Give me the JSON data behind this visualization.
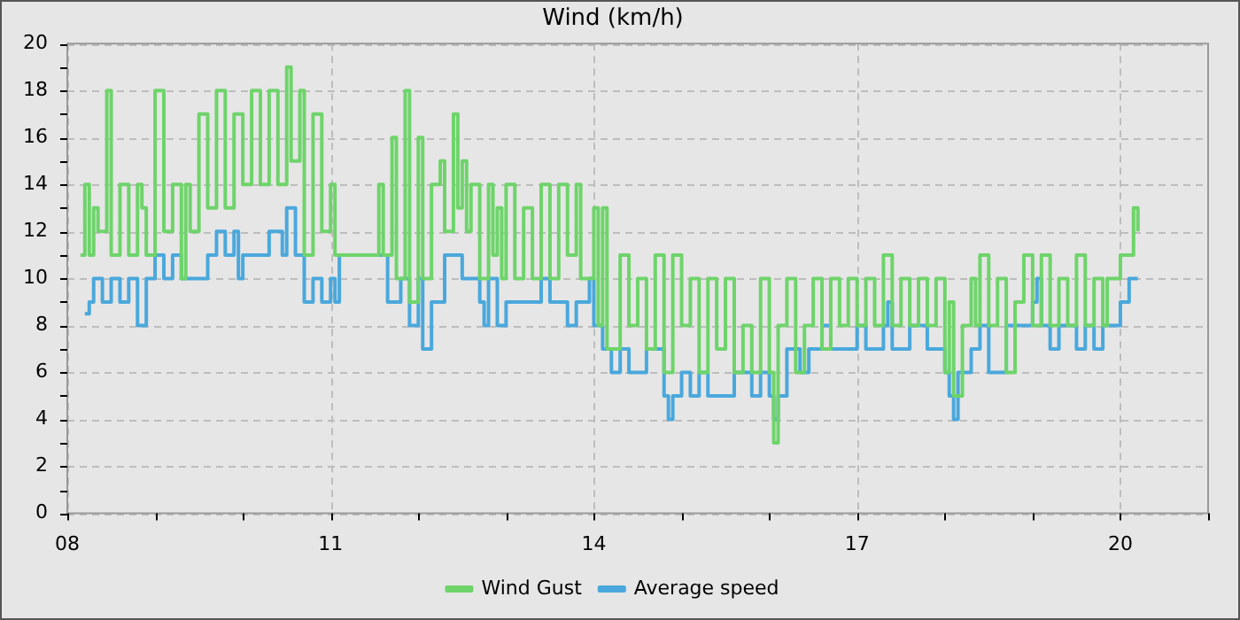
{
  "chart_data": {
    "type": "step",
    "title": "Wind (km/h)",
    "xlim": [
      8,
      21
    ],
    "ylim": [
      0,
      20
    ],
    "xticks": [
      {
        "value": 8,
        "label": "08"
      },
      {
        "value": 9,
        "label": null
      },
      {
        "value": 10,
        "label": null
      },
      {
        "value": 11,
        "label": "11"
      },
      {
        "value": 12,
        "label": null
      },
      {
        "value": 13,
        "label": null
      },
      {
        "value": 14,
        "label": "14"
      },
      {
        "value": 15,
        "label": null
      },
      {
        "value": 16,
        "label": null
      },
      {
        "value": 17,
        "label": "17"
      },
      {
        "value": 18,
        "label": null
      },
      {
        "value": 19,
        "label": null
      },
      {
        "value": 20,
        "label": "20"
      },
      {
        "value": 21,
        "label": null
      }
    ],
    "yticks": [
      0,
      {
        "value": 1,
        "label": null
      },
      2,
      {
        "value": 3,
        "label": null
      },
      4,
      {
        "value": 5,
        "label": null
      },
      6,
      {
        "value": 7,
        "label": null
      },
      8,
      {
        "value": 9,
        "label": null
      },
      10,
      {
        "value": 11,
        "label": null
      },
      12,
      {
        "value": 13,
        "label": null
      },
      14,
      {
        "value": 15,
        "label": null
      },
      16,
      {
        "value": 17,
        "label": null
      },
      18,
      {
        "value": 19,
        "label": null
      },
      20
    ],
    "grid": true,
    "legend": "bottom",
    "line_style": "solid",
    "marker": "none",
    "series": [
      {
        "name": "Wind Gust",
        "color": "#6ed46a",
        "x": [
          8.15,
          8.2,
          8.25,
          8.3,
          8.35,
          8.45,
          8.5,
          8.6,
          8.7,
          8.8,
          8.85,
          8.9,
          9.0,
          9.1,
          9.2,
          9.3,
          9.35,
          9.4,
          9.5,
          9.6,
          9.7,
          9.8,
          9.9,
          10.0,
          10.1,
          10.2,
          10.3,
          10.4,
          10.5,
          10.55,
          10.65,
          10.7,
          10.8,
          10.9,
          11.0,
          11.05,
          11.1,
          11.5,
          11.55,
          11.6,
          11.7,
          11.75,
          11.85,
          11.9,
          12.0,
          12.05,
          12.15,
          12.25,
          12.3,
          12.4,
          12.45,
          12.5,
          12.55,
          12.6,
          12.7,
          12.8,
          12.85,
          12.9,
          12.95,
          13.0,
          13.1,
          13.2,
          13.3,
          13.4,
          13.5,
          13.6,
          13.7,
          13.8,
          13.85,
          14.0,
          14.05,
          14.1,
          14.15,
          14.3,
          14.4,
          14.5,
          14.6,
          14.7,
          14.8,
          14.9,
          15.0,
          15.1,
          15.2,
          15.3,
          15.4,
          15.5,
          15.6,
          15.7,
          15.8,
          15.9,
          16.0,
          16.05,
          16.1,
          16.2,
          16.3,
          16.4,
          16.5,
          16.6,
          16.7,
          16.8,
          16.9,
          17.0,
          17.1,
          17.2,
          17.3,
          17.4,
          17.5,
          17.6,
          17.7,
          17.8,
          17.9,
          18.0,
          18.05,
          18.1,
          18.2,
          18.3,
          18.35,
          18.4,
          18.5,
          18.6,
          18.7,
          18.8,
          18.9,
          19.0,
          19.1,
          19.2,
          19.3,
          19.4,
          19.5,
          19.6,
          19.7,
          19.8,
          19.85,
          20.0,
          20.1,
          20.15,
          20.2
        ],
        "values": [
          11,
          14,
          11,
          13,
          12,
          18,
          11,
          14,
          11,
          14,
          13,
          11,
          18,
          12,
          14,
          10,
          14,
          12,
          17,
          13,
          18,
          13,
          17,
          14,
          18,
          14,
          18,
          14,
          19,
          15,
          18,
          11,
          17,
          12,
          14,
          11,
          11,
          11,
          14,
          11,
          16,
          10,
          18,
          9,
          16,
          10,
          14,
          15,
          12,
          17,
          13,
          15,
          12,
          14,
          10,
          14,
          11,
          13,
          10,
          14,
          10,
          13,
          10,
          14,
          10,
          14,
          11,
          14,
          10,
          13,
          8,
          13,
          7,
          11,
          8,
          10,
          7,
          11,
          6,
          11,
          8,
          10,
          6,
          10,
          7,
          10,
          6,
          8,
          6,
          10,
          6,
          3,
          8,
          10,
          6,
          8,
          10,
          7,
          10,
          8,
          10,
          8,
          10,
          8,
          11,
          8,
          10,
          8,
          10,
          8,
          10,
          6,
          9,
          5,
          8,
          10,
          8,
          11,
          8,
          10,
          6,
          9,
          11,
          8,
          11,
          8,
          10,
          8,
          11,
          8,
          10,
          8,
          10,
          11,
          11,
          13,
          12
        ]
      },
      {
        "name": "Average speed",
        "color": "#4aa8dc",
        "x": [
          8.2,
          8.25,
          8.3,
          8.4,
          8.5,
          8.6,
          8.7,
          8.8,
          8.9,
          9.0,
          9.1,
          9.2,
          9.3,
          9.5,
          9.6,
          9.7,
          9.8,
          9.9,
          9.95,
          10.0,
          10.2,
          10.3,
          10.45,
          10.5,
          10.6,
          10.7,
          10.8,
          10.9,
          11.0,
          11.05,
          11.1,
          11.6,
          11.65,
          11.8,
          11.9,
          12.0,
          12.05,
          12.15,
          12.3,
          12.5,
          12.6,
          12.7,
          12.75,
          12.8,
          12.9,
          13.0,
          13.2,
          13.4,
          13.5,
          13.7,
          13.8,
          13.95,
          14.0,
          14.1,
          14.2,
          14.3,
          14.4,
          14.6,
          14.8,
          14.85,
          14.9,
          15.0,
          15.1,
          15.2,
          15.3,
          15.5,
          15.6,
          15.8,
          15.9,
          16.0,
          16.05,
          16.1,
          16.2,
          16.35,
          16.45,
          16.6,
          16.7,
          17.0,
          17.1,
          17.3,
          17.35,
          17.4,
          17.6,
          17.8,
          18.0,
          18.05,
          18.1,
          18.15,
          18.3,
          18.4,
          18.5,
          18.6,
          18.7,
          18.9,
          19.0,
          19.05,
          19.1,
          19.2,
          19.3,
          19.5,
          19.6,
          19.7,
          19.8,
          19.95,
          20.0,
          20.1,
          20.2
        ],
        "values": [
          8.5,
          9,
          10,
          9,
          10,
          9,
          10,
          8,
          10,
          11,
          10,
          11,
          10,
          10,
          11,
          12,
          11,
          12,
          10,
          11,
          11,
          12,
          11,
          13,
          11,
          9,
          10,
          9,
          10,
          9,
          11,
          11,
          9,
          10,
          8,
          10,
          7,
          9,
          11,
          10,
          10,
          9,
          8,
          10,
          8,
          9,
          9,
          10,
          9,
          8,
          9,
          10,
          8,
          7,
          6,
          7,
          6,
          7,
          5,
          4,
          5,
          6,
          5,
          6,
          5,
          5,
          6,
          5,
          6,
          5,
          4,
          5,
          7,
          6,
          7,
          8,
          7,
          8,
          7,
          8,
          9,
          7,
          8,
          7,
          6,
          5,
          4,
          6,
          7,
          8,
          6,
          6,
          8,
          8,
          9,
          10,
          8,
          7,
          8,
          7,
          8,
          7,
          8,
          8,
          9,
          10,
          10
        ]
      }
    ]
  }
}
